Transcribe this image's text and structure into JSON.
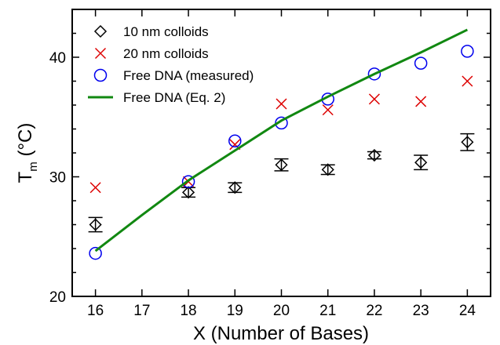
{
  "chart_data": {
    "type": "scatter",
    "xlabel": "X (Number of Bases)",
    "ylabel_main": "T",
    "ylabel_sub": "m",
    "ylabel_unit": "(°C)",
    "xlim": [
      15.5,
      24.5
    ],
    "ylim": [
      20,
      44
    ],
    "x_ticks": [
      16,
      17,
      18,
      19,
      20,
      21,
      22,
      23,
      24
    ],
    "y_ticks": [
      20,
      30,
      40
    ],
    "grid": false,
    "legend_position": "top-left",
    "series": [
      {
        "name": "10 nm colloids",
        "marker": "diamond",
        "color": "#000000",
        "x": [
          16,
          18,
          19,
          20,
          21,
          22,
          23,
          24
        ],
        "y": [
          26.0,
          28.7,
          29.1,
          31.0,
          30.6,
          31.8,
          31.2,
          32.9
        ],
        "err": [
          0.6,
          0.4,
          0.4,
          0.5,
          0.4,
          0.3,
          0.6,
          0.7
        ]
      },
      {
        "name": "20 nm colloids",
        "marker": "x",
        "color": "#dd0000",
        "x": [
          16,
          18,
          19,
          20,
          21,
          22,
          23,
          24
        ],
        "y": [
          29.1,
          29.6,
          32.7,
          36.1,
          35.6,
          36.5,
          36.3,
          38.0
        ]
      },
      {
        "name": "Free DNA (measured)",
        "marker": "circle",
        "color": "#0000ee",
        "x": [
          16,
          18,
          19,
          20,
          21,
          22,
          23,
          24
        ],
        "y": [
          23.6,
          29.6,
          33.0,
          34.5,
          36.5,
          38.6,
          39.5,
          40.5
        ]
      },
      {
        "name": "Free DNA (Eq. 2)",
        "marker": "line",
        "color": "#118811",
        "x": [
          16,
          17,
          18,
          19,
          20,
          21,
          22,
          23,
          24
        ],
        "y": [
          23.8,
          26.8,
          29.7,
          32.2,
          34.7,
          36.7,
          38.6,
          40.4,
          42.3
        ]
      }
    ]
  }
}
